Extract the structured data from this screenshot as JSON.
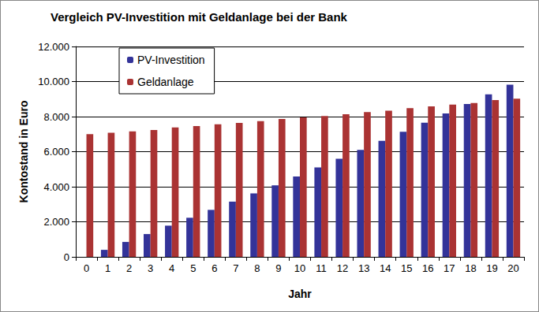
{
  "chart_data": {
    "type": "bar",
    "title": "Vergleich PV-Investition mit Geldanlage bei der Bank",
    "x_label": "Jahr",
    "y_label": "Kontostand in Euro",
    "categories": [
      "0",
      "1",
      "2",
      "3",
      "4",
      "5",
      "6",
      "7",
      "8",
      "9",
      "10",
      "11",
      "12",
      "13",
      "14",
      "15",
      "16",
      "17",
      "18",
      "19",
      "20"
    ],
    "series": [
      {
        "name": "PV-Investition",
        "color": "#333399",
        "values": [
          0,
          400,
          850,
          1300,
          1780,
          2230,
          2680,
          3150,
          3620,
          4080,
          4580,
          5100,
          5600,
          6100,
          6620,
          7130,
          7650,
          8180,
          8720,
          9270,
          9820
        ]
      },
      {
        "name": "Geldanlage",
        "color": "#aa3333",
        "values": [
          7000,
          7080,
          7160,
          7240,
          7380,
          7460,
          7560,
          7640,
          7740,
          7870,
          7960,
          8030,
          8130,
          8260,
          8340,
          8480,
          8580,
          8680,
          8780,
          8940,
          9020
        ]
      }
    ],
    "ylim": [
      0,
      12000
    ],
    "yticks": [
      0,
      {
        "value": 2000,
        "label": "2.000"
      },
      {
        "value": 4000,
        "label": "4.000"
      },
      {
        "value": 6000,
        "label": "6.000"
      },
      {
        "value": 8000,
        "label": "8.000"
      },
      {
        "value": 10000,
        "label": "10.000"
      },
      {
        "value": 12000,
        "label": "12.000"
      }
    ],
    "grid": true,
    "legend": "upper left"
  }
}
